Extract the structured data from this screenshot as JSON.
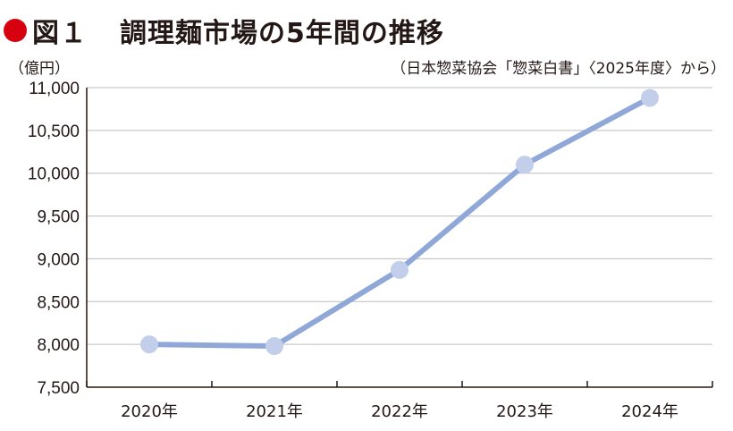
{
  "header": {
    "figure_label": "図１",
    "title": "調理麺市場の5年間の推移"
  },
  "unit_label": "（億円）",
  "source": "（日本惣菜協会「惣菜白書」〈2025年度〉から）",
  "colors": {
    "accent_dot": "#d7000f",
    "line": "#8fa8d8",
    "marker": "#c3cfea",
    "grid": "#bdbdbd"
  },
  "chart_data": {
    "type": "line",
    "title": "調理麺市場の5年間の推移",
    "xlabel": "",
    "ylabel": "（億円）",
    "categories": [
      "2020年",
      "2021年",
      "2022年",
      "2023年",
      "2024年"
    ],
    "series": [
      {
        "values": [
          8000,
          7980,
          8870,
          10100,
          10880
        ]
      }
    ],
    "ylim": [
      7500,
      11000
    ],
    "yticks": [
      7500,
      8000,
      8500,
      9000,
      9500,
      10000,
      10500,
      11000
    ],
    "ytick_labels": [
      "7,500",
      "8,000",
      "8,500",
      "9,000",
      "9,500",
      "10,000",
      "10,500",
      "11,000"
    ],
    "grid": true,
    "legend": "none"
  }
}
